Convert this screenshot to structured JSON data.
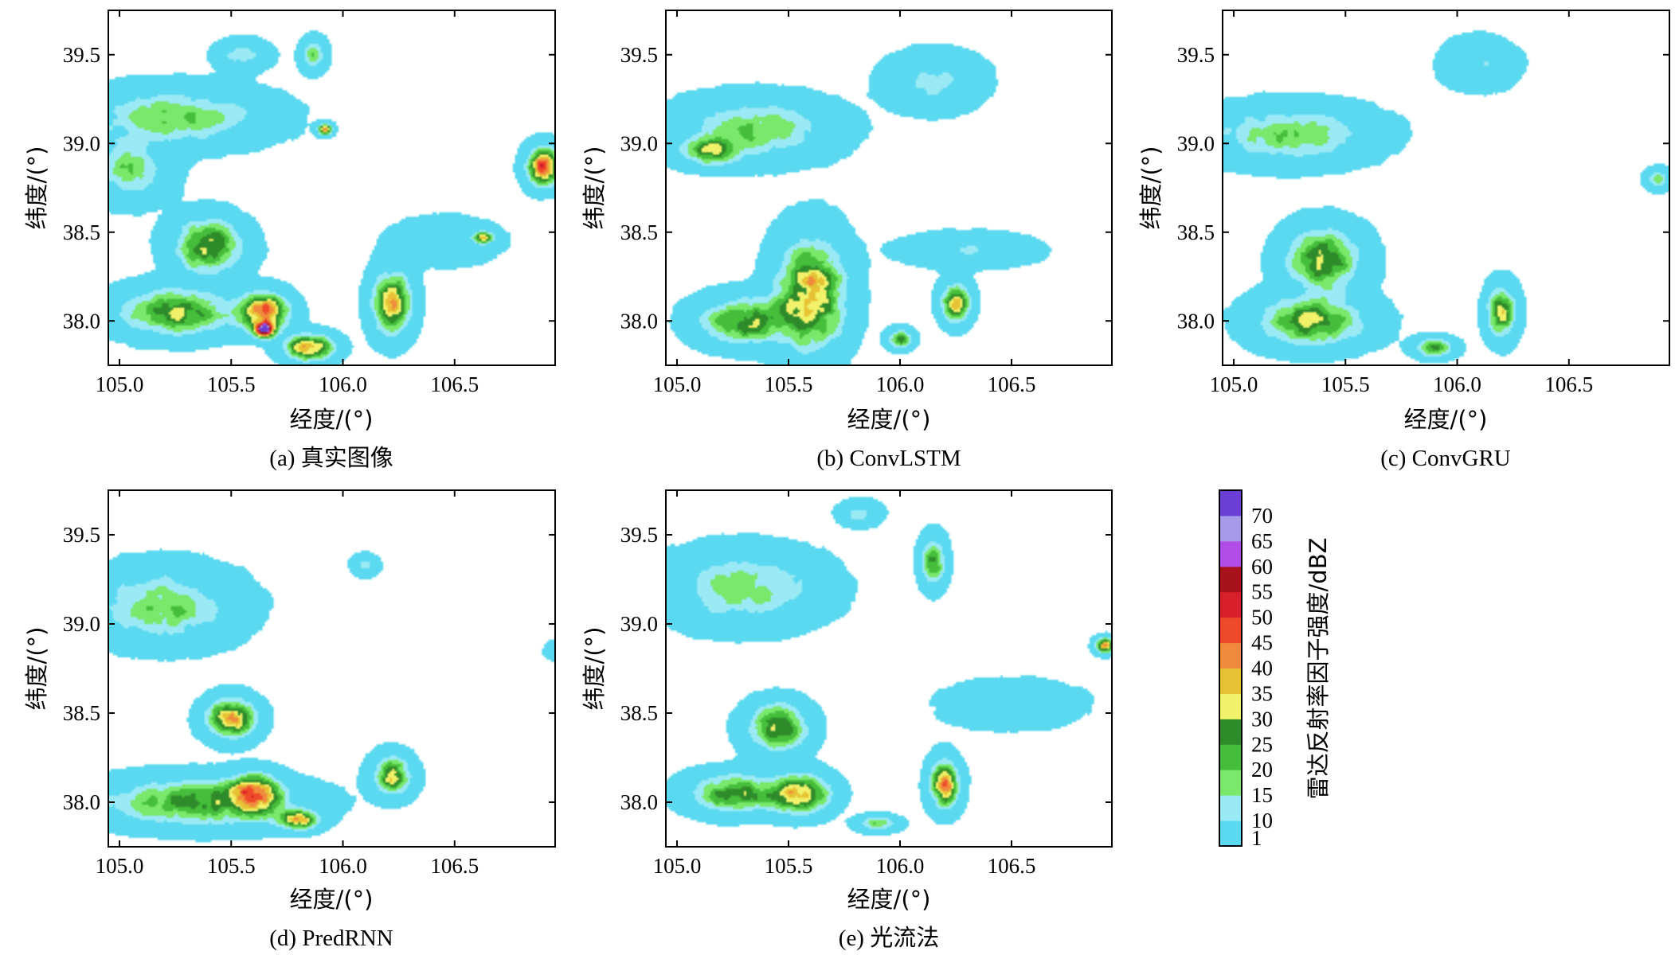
{
  "chart_data": {
    "type": "heatmap",
    "description_units": "dBZ",
    "colorbar": {
      "label": "雷达反射率因子强度/dBZ",
      "ticks": [
        "1",
        "10",
        "15",
        "20",
        "25",
        "30",
        "35",
        "40",
        "45",
        "50",
        "55",
        "60",
        "65",
        "70"
      ],
      "colors": [
        "#5bd9f0",
        "#9aeaf6",
        "#79e86b",
        "#46be3b",
        "#2e8b2a",
        "#f2f26a",
        "#e6c234",
        "#f08a3c",
        "#ee4a2a",
        "#d8202a",
        "#a8121c",
        "#b04de6",
        "#a79ae8",
        "#6b3fd6"
      ]
    },
    "common": {
      "xlabel": "经度/(°)",
      "ylabel": "纬度/(°)",
      "xticks": [
        "105.0",
        "105.5",
        "106.0",
        "106.5"
      ],
      "yticks": [
        "38.0",
        "38.5",
        "39.0",
        "39.5"
      ],
      "xlim": [
        104.95,
        106.95
      ],
      "ylim": [
        37.75,
        39.75
      ]
    },
    "panels": [
      {
        "id": "a",
        "caption": "(a) 真实图像",
        "cells": [
          {
            "lon": 105.25,
            "lat": 39.15,
            "sx": 0.35,
            "sy": 0.14,
            "peak": 20
          },
          {
            "lon": 105.55,
            "lat": 39.5,
            "sx": 0.1,
            "sy": 0.07,
            "peak": 15
          },
          {
            "lon": 105.05,
            "lat": 38.85,
            "sx": 0.15,
            "sy": 0.15,
            "peak": 18
          },
          {
            "lon": 105.4,
            "lat": 38.42,
            "sx": 0.14,
            "sy": 0.14,
            "peak": 33
          },
          {
            "lon": 105.25,
            "lat": 38.05,
            "sx": 0.22,
            "sy": 0.12,
            "peak": 32
          },
          {
            "lon": 105.65,
            "lat": 38.05,
            "sx": 0.1,
            "sy": 0.1,
            "peak": 45
          },
          {
            "lon": 105.85,
            "lat": 37.85,
            "sx": 0.1,
            "sy": 0.07,
            "peak": 40
          },
          {
            "lon": 105.65,
            "lat": 37.95,
            "sx": 0.04,
            "sy": 0.04,
            "peak": 62
          },
          {
            "lon": 106.22,
            "lat": 38.1,
            "sx": 0.08,
            "sy": 0.16,
            "peak": 38
          },
          {
            "lon": 106.9,
            "lat": 38.87,
            "sx": 0.07,
            "sy": 0.1,
            "peak": 45
          },
          {
            "lon": 106.63,
            "lat": 38.47,
            "sx": 0.04,
            "sy": 0.03,
            "peak": 38
          },
          {
            "lon": 105.92,
            "lat": 39.08,
            "sx": 0.03,
            "sy": 0.03,
            "peak": 40
          },
          {
            "lon": 105.87,
            "lat": 39.5,
            "sx": 0.05,
            "sy": 0.08,
            "peak": 18
          },
          {
            "lon": 106.45,
            "lat": 38.45,
            "sx": 0.22,
            "sy": 0.12,
            "peak": 6
          }
        ]
      },
      {
        "id": "b",
        "caption": "(b) ConvLSTM",
        "cells": [
          {
            "lon": 105.35,
            "lat": 39.08,
            "sx": 0.3,
            "sy": 0.15,
            "peak": 20
          },
          {
            "lon": 105.15,
            "lat": 38.95,
            "sx": 0.12,
            "sy": 0.07,
            "peak": 25
          },
          {
            "lon": 105.6,
            "lat": 38.15,
            "sx": 0.14,
            "sy": 0.28,
            "peak": 38
          },
          {
            "lon": 105.3,
            "lat": 38.0,
            "sx": 0.18,
            "sy": 0.12,
            "peak": 30
          },
          {
            "lon": 106.25,
            "lat": 38.1,
            "sx": 0.06,
            "sy": 0.1,
            "peak": 34
          },
          {
            "lon": 106.15,
            "lat": 39.35,
            "sx": 0.18,
            "sy": 0.14,
            "peak": 12
          },
          {
            "lon": 106.0,
            "lat": 37.9,
            "sx": 0.05,
            "sy": 0.05,
            "peak": 28
          },
          {
            "lon": 106.3,
            "lat": 38.4,
            "sx": 0.25,
            "sy": 0.08,
            "peak": 10
          }
        ]
      },
      {
        "id": "c",
        "caption": "(c) ConvGRU",
        "cells": [
          {
            "lon": 105.25,
            "lat": 39.05,
            "sx": 0.32,
            "sy": 0.14,
            "peak": 20
          },
          {
            "lon": 105.4,
            "lat": 38.35,
            "sx": 0.15,
            "sy": 0.16,
            "peak": 32
          },
          {
            "lon": 105.35,
            "lat": 38.0,
            "sx": 0.22,
            "sy": 0.13,
            "peak": 30
          },
          {
            "lon": 106.2,
            "lat": 38.05,
            "sx": 0.06,
            "sy": 0.13,
            "peak": 33
          },
          {
            "lon": 106.1,
            "lat": 39.45,
            "sx": 0.14,
            "sy": 0.12,
            "peak": 10
          },
          {
            "lon": 106.9,
            "lat": 38.8,
            "sx": 0.05,
            "sy": 0.05,
            "peak": 18
          },
          {
            "lon": 105.9,
            "lat": 37.85,
            "sx": 0.08,
            "sy": 0.05,
            "peak": 25
          }
        ]
      },
      {
        "id": "d",
        "caption": "(d) PredRNN",
        "cells": [
          {
            "lon": 105.2,
            "lat": 39.1,
            "sx": 0.28,
            "sy": 0.18,
            "peak": 20
          },
          {
            "lon": 105.5,
            "lat": 38.47,
            "sx": 0.1,
            "sy": 0.1,
            "peak": 42
          },
          {
            "lon": 105.35,
            "lat": 38.0,
            "sx": 0.38,
            "sy": 0.12,
            "peak": 27
          },
          {
            "lon": 105.6,
            "lat": 38.05,
            "sx": 0.1,
            "sy": 0.1,
            "peak": 34
          },
          {
            "lon": 105.8,
            "lat": 37.9,
            "sx": 0.08,
            "sy": 0.05,
            "peak": 36
          },
          {
            "lon": 106.22,
            "lat": 38.15,
            "sx": 0.08,
            "sy": 0.1,
            "peak": 32
          },
          {
            "lon": 106.1,
            "lat": 39.33,
            "sx": 0.05,
            "sy": 0.05,
            "peak": 12
          },
          {
            "lon": 106.95,
            "lat": 38.85,
            "sx": 0.04,
            "sy": 0.04,
            "peak": 10
          }
        ]
      },
      {
        "id": "e",
        "caption": "(e) 光流法",
        "cells": [
          {
            "lon": 105.3,
            "lat": 39.2,
            "sx": 0.3,
            "sy": 0.18,
            "peak": 18
          },
          {
            "lon": 105.45,
            "lat": 38.42,
            "sx": 0.12,
            "sy": 0.12,
            "peak": 34
          },
          {
            "lon": 105.25,
            "lat": 38.05,
            "sx": 0.18,
            "sy": 0.1,
            "peak": 28
          },
          {
            "lon": 105.55,
            "lat": 38.05,
            "sx": 0.12,
            "sy": 0.1,
            "peak": 40
          },
          {
            "lon": 106.2,
            "lat": 38.1,
            "sx": 0.06,
            "sy": 0.12,
            "peak": 42
          },
          {
            "lon": 106.15,
            "lat": 39.35,
            "sx": 0.05,
            "sy": 0.12,
            "peak": 28
          },
          {
            "lon": 105.82,
            "lat": 39.62,
            "sx": 0.08,
            "sy": 0.06,
            "peak": 12
          },
          {
            "lon": 106.5,
            "lat": 38.55,
            "sx": 0.28,
            "sy": 0.12,
            "peak": 6
          },
          {
            "lon": 106.92,
            "lat": 38.88,
            "sx": 0.04,
            "sy": 0.04,
            "peak": 42
          },
          {
            "lon": 105.9,
            "lat": 37.88,
            "sx": 0.08,
            "sy": 0.04,
            "peak": 20
          }
        ]
      }
    ]
  }
}
